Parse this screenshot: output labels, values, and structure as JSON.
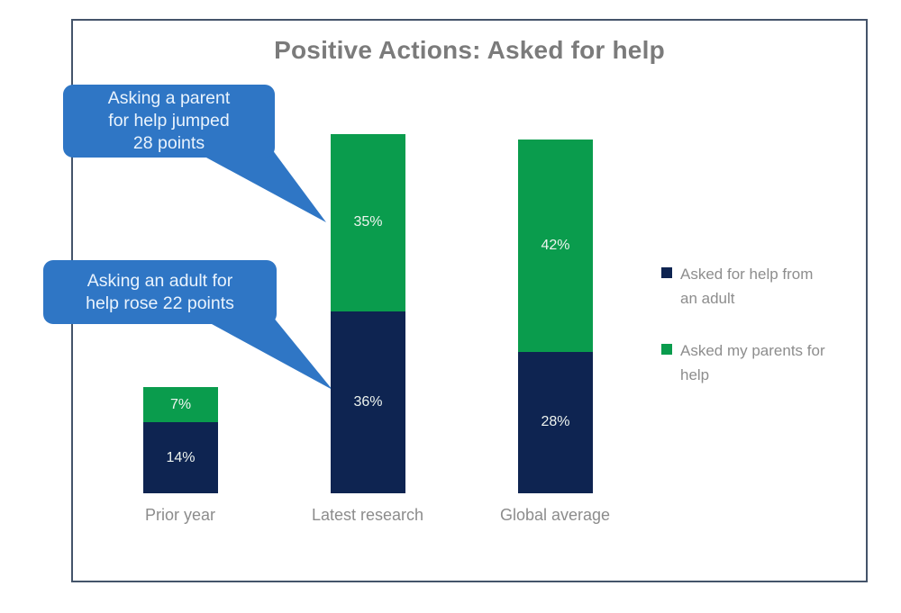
{
  "chart_data": {
    "type": "bar",
    "stacked": true,
    "title": "Positive Actions: Asked for help",
    "categories": [
      "Prior year",
      "Latest research",
      "Global average"
    ],
    "series": [
      {
        "name": "Asked for help from an adult",
        "color": "#0e2451",
        "values": [
          14,
          36,
          28
        ],
        "labels": [
          "14%",
          "36%",
          "28%"
        ]
      },
      {
        "name": "Asked my parents for help",
        "color": "#0a9c4d",
        "values": [
          7,
          35,
          42
        ],
        "labels": [
          "7%",
          "35%",
          "42%"
        ]
      }
    ],
    "value_unit": "%",
    "axes_visible": false,
    "grid": false,
    "legend_position": "right"
  },
  "callouts": [
    {
      "lines": [
        "Asking a parent",
        "for help jumped",
        "28 points"
      ]
    },
    {
      "lines": [
        "Asking an adult for",
        "help rose 22 points"
      ]
    }
  ],
  "legend": [
    {
      "lines": [
        "Asked for help from",
        "an adult"
      ],
      "color": "#0e2451"
    },
    {
      "lines": [
        "Asked my parents for",
        "help"
      ],
      "color": "#0a9c4d"
    }
  ],
  "colors": {
    "adult_series": "#0e2451",
    "parents_series": "#0a9c4d",
    "callout_bubble": "#2f76c5",
    "frame_border": "#44546a",
    "title_text": "#7b7b7b",
    "axis_label_text": "#8c8c8c",
    "legend_text": "#8d8d8d"
  }
}
